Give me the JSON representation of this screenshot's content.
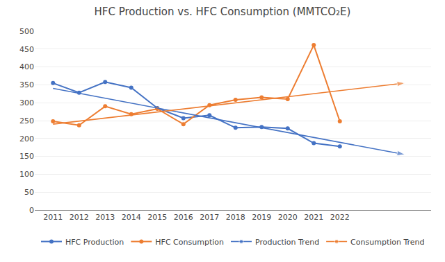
{
  "chart_data": {
    "type": "line",
    "title": "HFC Production vs. HFC Consumption (MMTCO₂E)",
    "x": [
      2011,
      2012,
      2013,
      2014,
      2015,
      2016,
      2017,
      2018,
      2019,
      2020,
      2021,
      2022
    ],
    "series": [
      {
        "name": "HFC Production",
        "color": "#4472C4",
        "marker": "circle",
        "line_style": "solid",
        "values": [
          355,
          328,
          358,
          342,
          285,
          257,
          265,
          230,
          232,
          228,
          187,
          178
        ]
      },
      {
        "name": "HFC Consumption",
        "color": "#ED7D31",
        "marker": "circle",
        "line_style": "solid",
        "values": [
          248,
          237,
          290,
          268,
          283,
          240,
          293,
          308,
          315,
          310,
          461,
          248
        ]
      },
      {
        "name": "Production Trend",
        "color": "#4472C4",
        "marker": "arrow",
        "line_style": "solid",
        "x": [
          2011,
          2024.5
        ],
        "values": [
          340,
          155
        ]
      },
      {
        "name": "Consumption Trend",
        "color": "#ED7D31",
        "marker": "arrow",
        "line_style": "solid",
        "x": [
          2011,
          2024.5
        ],
        "values": [
          240,
          355
        ]
      }
    ],
    "xlim": [
      2010.3,
      2025.5
    ],
    "xticks": [
      2011,
      2012,
      2013,
      2014,
      2015,
      2016,
      2017,
      2018,
      2019,
      2020,
      2021,
      2022
    ],
    "ylim": [
      0,
      500
    ],
    "yticks": [
      0,
      50,
      100,
      150,
      200,
      250,
      300,
      350,
      400,
      450,
      500
    ],
    "grid": true,
    "legend": "bottom"
  }
}
